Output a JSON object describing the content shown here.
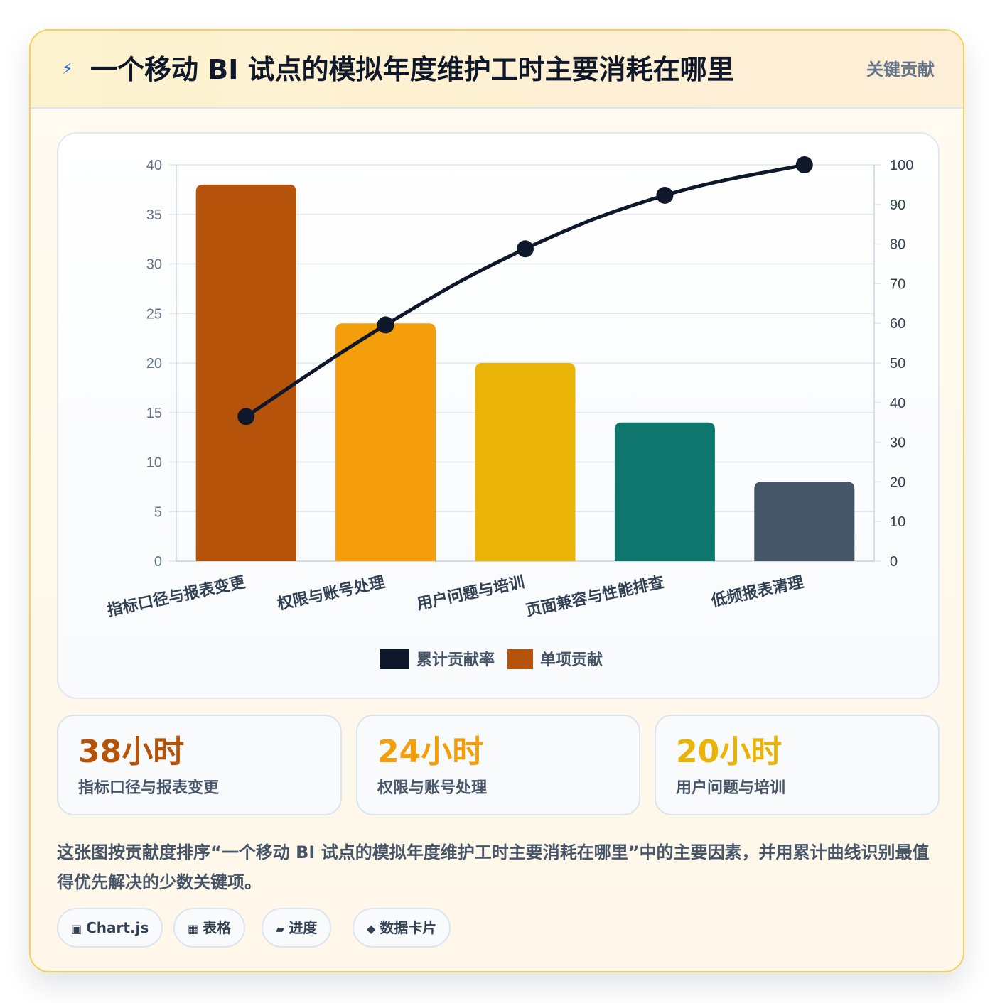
{
  "header": {
    "icon": "bolt-icon",
    "title": "一个移动 BI 试点的模拟年度维护工时主要消耗在哪里",
    "badge": "关键贡献"
  },
  "chart_data": {
    "type": "bar",
    "categories": [
      "指标口径与报表变更",
      "权限与账号处理",
      "用户问题与培训",
      "页面兼容与性能排查",
      "低频报表清理"
    ],
    "series": [
      {
        "name": "单项贡献",
        "type": "bar",
        "axis": "left",
        "values": [
          38,
          24,
          20,
          14,
          8
        ]
      },
      {
        "name": "累计贡献率",
        "type": "line",
        "axis": "right",
        "values": [
          36.5,
          59.6,
          78.8,
          92.3,
          100
        ]
      }
    ],
    "bar_colors": [
      "#b45309",
      "#f59e0b",
      "#eab308",
      "#0f766e",
      "#475569"
    ],
    "line_color": "#0f172a",
    "y_left": {
      "min": 0,
      "max": 40,
      "ticks": [
        0,
        5,
        10,
        15,
        20,
        25,
        30,
        35,
        40
      ]
    },
    "y_right": {
      "min": 0,
      "max": 100,
      "ticks": [
        0,
        10,
        20,
        30,
        40,
        50,
        60,
        70,
        80,
        90,
        100
      ]
    },
    "grid": true,
    "legend": {
      "position": "bottom",
      "items": [
        {
          "label": "累计贡献率",
          "color": "#0f172a"
        },
        {
          "label": "单项贡献",
          "color": "#b45309"
        }
      ]
    }
  },
  "stats": [
    {
      "value": "38小时",
      "label": "指标口径与报表变更",
      "color": "#b45309"
    },
    {
      "value": "24小时",
      "label": "权限与账号处理",
      "color": "#f59e0b"
    },
    {
      "value": "20小时",
      "label": "用户问题与培训",
      "color": "#eab308"
    }
  ],
  "description": "这张图按贡献度排序“一个移动 BI 试点的模拟年度维护工时主要消耗在哪里”中的主要因素，并用累计曲线识别最值得优先解决的少数关键项。",
  "tags": [
    {
      "icon": "chart-icon",
      "label": "Chart.js"
    },
    {
      "icon": "table-icon",
      "label": "表格"
    },
    {
      "icon": "progress-icon",
      "label": "进度"
    },
    {
      "icon": "diamond-icon",
      "label": "数据卡片"
    }
  ]
}
